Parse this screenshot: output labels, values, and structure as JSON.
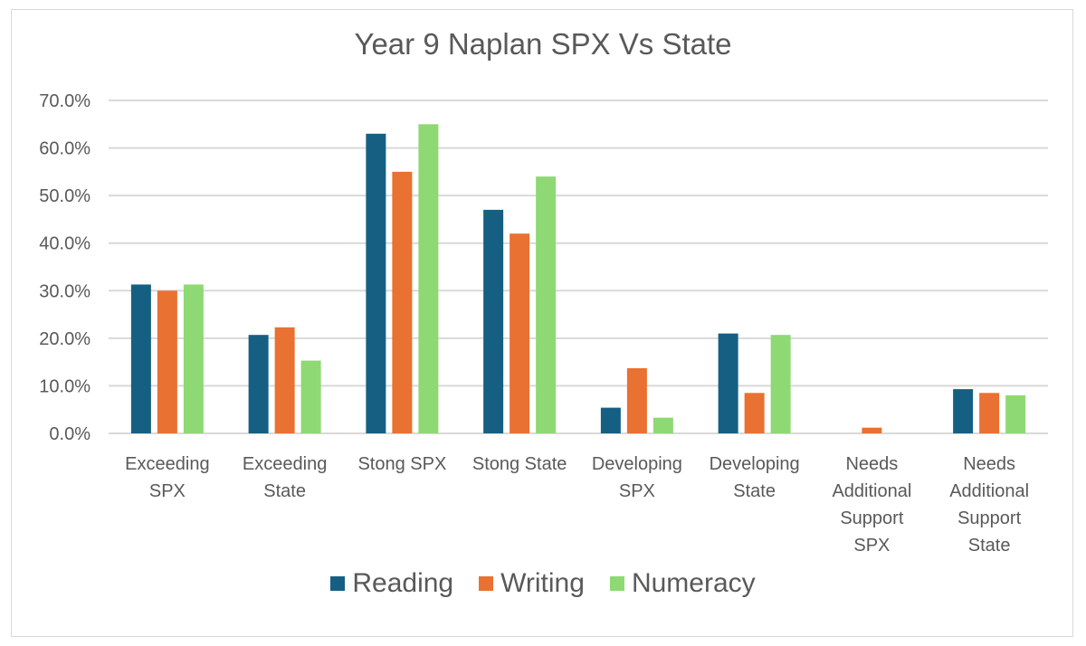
{
  "chart_data": {
    "type": "bar",
    "title": "Year 9 Naplan SPX Vs State",
    "categories": [
      [
        "Exceeding",
        "SPX"
      ],
      [
        "Exceeding",
        "State"
      ],
      [
        "Stong SPX"
      ],
      [
        "Stong State"
      ],
      [
        "Developing",
        "SPX"
      ],
      [
        "Developing",
        "State"
      ],
      [
        "Needs",
        "Additional",
        "Support",
        "SPX"
      ],
      [
        "Needs",
        "Additional",
        "Support",
        "State"
      ]
    ],
    "series": [
      {
        "name": "Reading",
        "color": "#156082",
        "values": [
          31.3,
          20.7,
          63.0,
          47.0,
          5.4,
          21.0,
          0.0,
          9.3
        ]
      },
      {
        "name": "Writing",
        "color": "#E97132",
        "values": [
          30.0,
          22.3,
          55.0,
          42.0,
          13.7,
          8.5,
          1.2,
          8.5
        ]
      },
      {
        "name": "Numeracy",
        "color": "#8ED973",
        "values": [
          31.3,
          15.3,
          65.0,
          54.0,
          3.3,
          20.7,
          0.0,
          8.0
        ]
      }
    ],
    "ylim": [
      0,
      70
    ],
    "yticks": [
      "0.0%",
      "10.0%",
      "20.0%",
      "30.0%",
      "40.0%",
      "50.0%",
      "60.0%",
      "70.0%"
    ],
    "grid": true,
    "legend": "bottom"
  }
}
